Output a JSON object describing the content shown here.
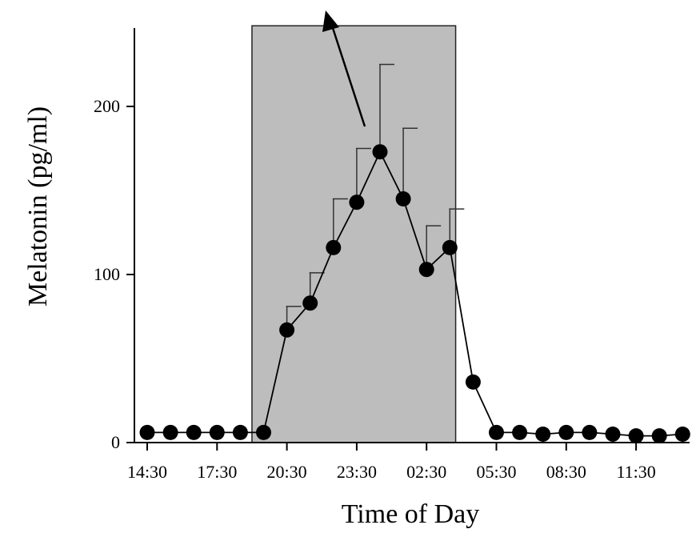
{
  "chart_data": {
    "type": "line",
    "title": "",
    "xlabel": "Time of Day",
    "ylabel": "Melatonin (pg/ml)",
    "ylim": [
      0,
      248
    ],
    "yticks": [
      0,
      100,
      200
    ],
    "ytick_labels": [
      "0",
      "100",
      "200"
    ],
    "xticks": [
      "14:30",
      "17:30",
      "20:30",
      "23:30",
      "02:30",
      "05:30",
      "08:30",
      "11:30"
    ],
    "grid": false,
    "legend": "none",
    "shaded_interval": {
      "from": "19:00",
      "to": "03:45"
    },
    "series": [
      {
        "marker": "filled-circle",
        "color": "#000000",
        "points": [
          {
            "x": "14:30",
            "y": 6
          },
          {
            "x": "15:30",
            "y": 6
          },
          {
            "x": "16:30",
            "y": 6
          },
          {
            "x": "17:30",
            "y": 6
          },
          {
            "x": "18:30",
            "y": 6
          },
          {
            "x": "19:30",
            "y": 6
          },
          {
            "x": "20:30",
            "y": 67,
            "err": 14
          },
          {
            "x": "21:30",
            "y": 83,
            "err": 18
          },
          {
            "x": "22:30",
            "y": 116,
            "err": 29
          },
          {
            "x": "23:30",
            "y": 143,
            "err": 32
          },
          {
            "x": "00:30",
            "y": 173,
            "err": 52
          },
          {
            "x": "01:30",
            "y": 145,
            "err": 42
          },
          {
            "x": "02:30",
            "y": 103,
            "err": 26
          },
          {
            "x": "03:30",
            "y": 116,
            "err": 23
          },
          {
            "x": "04:30",
            "y": 36
          },
          {
            "x": "05:30",
            "y": 6
          },
          {
            "x": "06:30",
            "y": 6
          },
          {
            "x": "07:30",
            "y": 5
          },
          {
            "x": "08:30",
            "y": 6
          },
          {
            "x": "09:30",
            "y": 6
          },
          {
            "x": "10:30",
            "y": 5
          },
          {
            "x": "11:30",
            "y": 4
          },
          {
            "x": "12:30",
            "y": 4
          },
          {
            "x": "13:30",
            "y": 5
          }
        ]
      }
    ],
    "colors": {
      "shade": "#bdbdbd",
      "line": "#000000"
    }
  }
}
